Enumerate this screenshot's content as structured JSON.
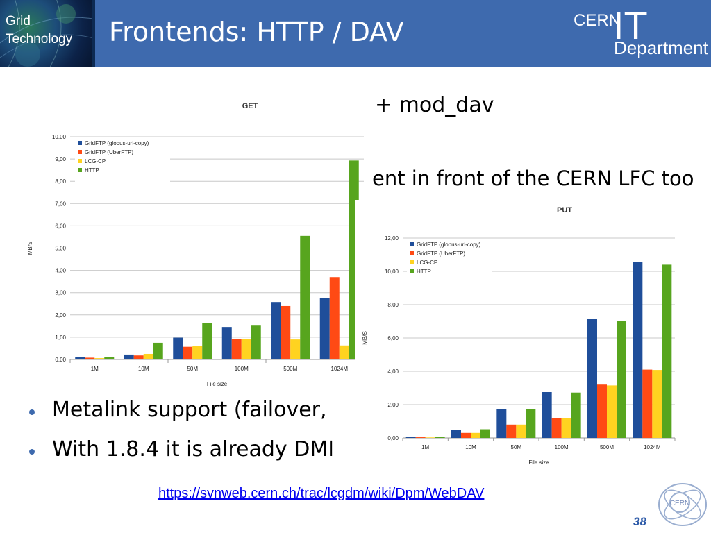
{
  "header": {
    "logo_line1": "Grid",
    "logo_line2": "Technology",
    "title": "Frontends: HTTP / DAV",
    "cern_logo": {
      "cern": "CERN",
      "it": "IT",
      "department": "Department"
    }
  },
  "body": {
    "partial_line_1": "+ mod_dav",
    "partial_line_2": "ent in front of the CERN LFC too",
    "bullets": [
      "Metalink support (failover,",
      "With 1.8.4 it is already DMI"
    ]
  },
  "footer": {
    "link": "https://svnweb.cern.ch/trac/lcgdm/wiki/Dpm/WebDAV",
    "page_number": "38"
  },
  "colors": {
    "header_bg": "#3E6AAE",
    "series": [
      "#1F4E9A",
      "#FF4A14",
      "#FFD320",
      "#57A51E"
    ]
  },
  "chart_data": [
    {
      "type": "bar",
      "title": "GET",
      "xlabel": "File size",
      "ylabel": "MB/S",
      "ylim": [
        0,
        10
      ],
      "yticks": [
        "0,00",
        "1,00",
        "2,00",
        "3,00",
        "4,00",
        "5,00",
        "6,00",
        "7,00",
        "8,00",
        "9,00",
        "10,00"
      ],
      "categories": [
        "1M",
        "10M",
        "50M",
        "100M",
        "500M",
        "1024M"
      ],
      "legend_position": "top-left",
      "series": [
        {
          "name": "GridFTP (globus-url-copy)",
          "values": [
            0.1,
            0.22,
            0.98,
            1.46,
            2.58,
            2.75
          ]
        },
        {
          "name": "GridFTP (UberFTP)",
          "values": [
            0.08,
            0.18,
            0.57,
            0.92,
            2.4,
            3.7
          ]
        },
        {
          "name": "LCG-CP",
          "values": [
            0.06,
            0.25,
            0.6,
            0.92,
            0.9,
            0.63
          ]
        },
        {
          "name": "HTTP",
          "values": [
            0.12,
            0.75,
            1.62,
            1.52,
            5.55,
            8.93
          ]
        }
      ]
    },
    {
      "type": "bar",
      "title": "PUT",
      "xlabel": "File size",
      "ylabel": "MB/S",
      "ylim": [
        0,
        12
      ],
      "yticks": [
        "0,00",
        "2,00",
        "4,00",
        "6,00",
        "8,00",
        "10,00",
        "12,00"
      ],
      "categories": [
        "1M",
        "10M",
        "50M",
        "100M",
        "500M",
        "1024M"
      ],
      "legend_position": "top-left",
      "series": [
        {
          "name": "GridFTP (globus-url-copy)",
          "values": [
            0.05,
            0.5,
            1.75,
            2.75,
            7.15,
            10.55
          ]
        },
        {
          "name": "GridFTP (UberFTP)",
          "values": [
            0.04,
            0.3,
            0.8,
            1.18,
            3.2,
            4.1
          ]
        },
        {
          "name": "LCG-CP",
          "values": [
            0.03,
            0.3,
            0.8,
            1.18,
            3.15,
            4.08
          ]
        },
        {
          "name": "HTTP",
          "values": [
            0.06,
            0.52,
            1.75,
            2.72,
            7.02,
            10.4
          ]
        }
      ]
    }
  ]
}
